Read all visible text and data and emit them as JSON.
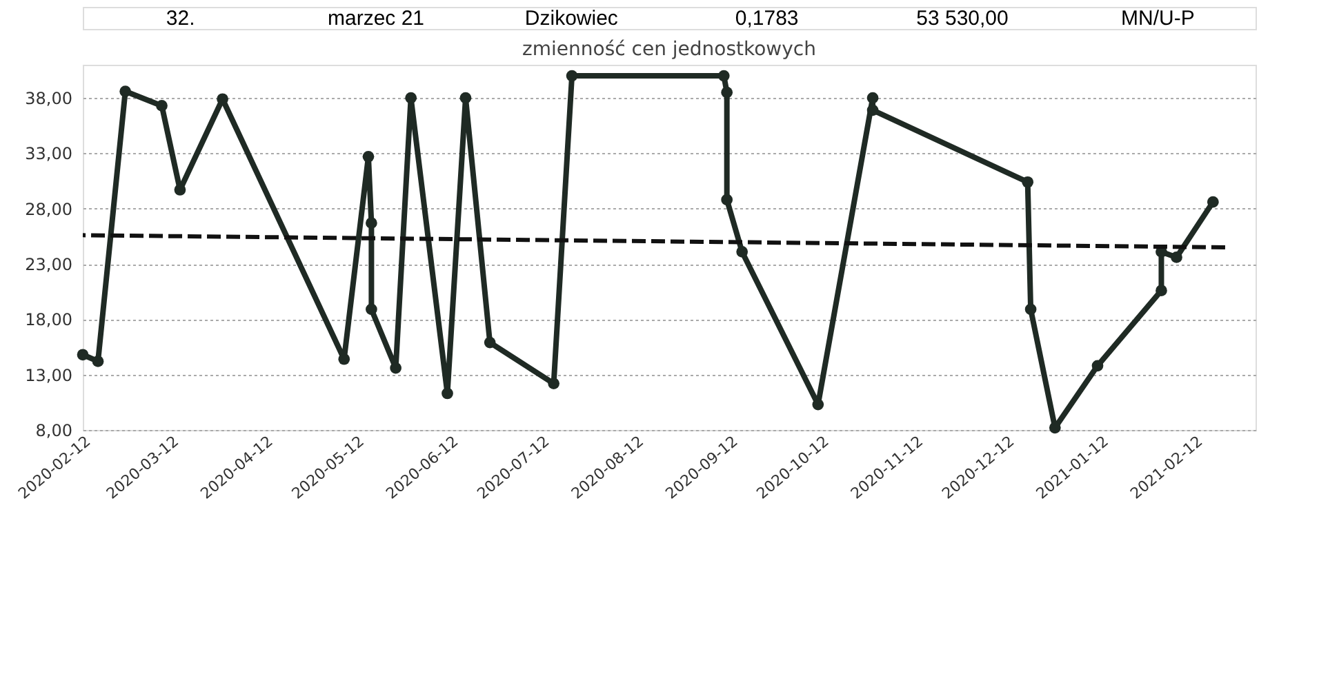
{
  "chart_data": {
    "type": "line",
    "title": "zmienność cen jednostkowych",
    "annotations": [
      "32.",
      "marzec 21",
      "Dzikowiec",
      "0,1783",
      "53 530,00",
      "MN/U-P"
    ],
    "x": [
      "2020-02-12",
      "2020-02-17",
      "2020-02-26",
      "2020-03-09",
      "2020-03-15",
      "2020-03-29",
      "2020-05-08",
      "2020-05-16",
      "2020-05-17",
      "2020-05-17",
      "2020-05-25",
      "2020-05-30",
      "2020-06-11",
      "2020-06-17",
      "2020-06-25",
      "2020-07-16",
      "2020-07-22",
      "2020-09-10",
      "2020-09-11",
      "2020-09-11",
      "2020-09-16",
      "2020-10-11",
      "2020-10-29",
      "2020-10-29",
      "2020-12-19",
      "2020-12-20",
      "2020-12-28",
      "2021-01-11",
      "2021-02-01",
      "2021-02-01",
      "2021-02-06",
      "2021-02-18"
    ],
    "series": [
      {
        "color": "#1f2a24",
        "marker": "circle",
        "line_style": "solid",
        "values": [
          14.8,
          14.2,
          38.6,
          37.3,
          29.7,
          37.9,
          14.4,
          32.7,
          26.7,
          18.9,
          13.6,
          38.0,
          11.3,
          38.0,
          15.9,
          12.2,
          40.0,
          40.0,
          38.5,
          28.8,
          24.1,
          10.3,
          38.0,
          36.9,
          30.4,
          18.9,
          8.2,
          13.8,
          20.6,
          24.1,
          23.6,
          28.6
        ]
      },
      {
        "color": "#111111",
        "marker": "none",
        "line_style": "dashed",
        "x": [
          "2020-02-12",
          "2021-02-22"
        ],
        "values": [
          25.6,
          24.5
        ]
      }
    ],
    "xlim": [
      "2020-02-12",
      "2021-03-04"
    ],
    "xticks": [
      "2020-02-12",
      "2020-03-12",
      "2020-04-12",
      "2020-05-12",
      "2020-06-12",
      "2020-07-12",
      "2020-08-12",
      "2020-09-12",
      "2020-10-12",
      "2020-11-12",
      "2020-12-12",
      "2021-01-12",
      "2021-02-12"
    ],
    "ylim": [
      8,
      41
    ],
    "yticks": [
      {
        "value": 8,
        "label": "8,00"
      },
      {
        "value": 13,
        "label": "13,00"
      },
      {
        "value": 18,
        "label": "18,00"
      },
      {
        "value": 23,
        "label": "23,00"
      },
      {
        "value": 28,
        "label": "28,00"
      },
      {
        "value": 33,
        "label": "33,00"
      },
      {
        "value": 38,
        "label": "38,00"
      }
    ],
    "grid": "y"
  }
}
